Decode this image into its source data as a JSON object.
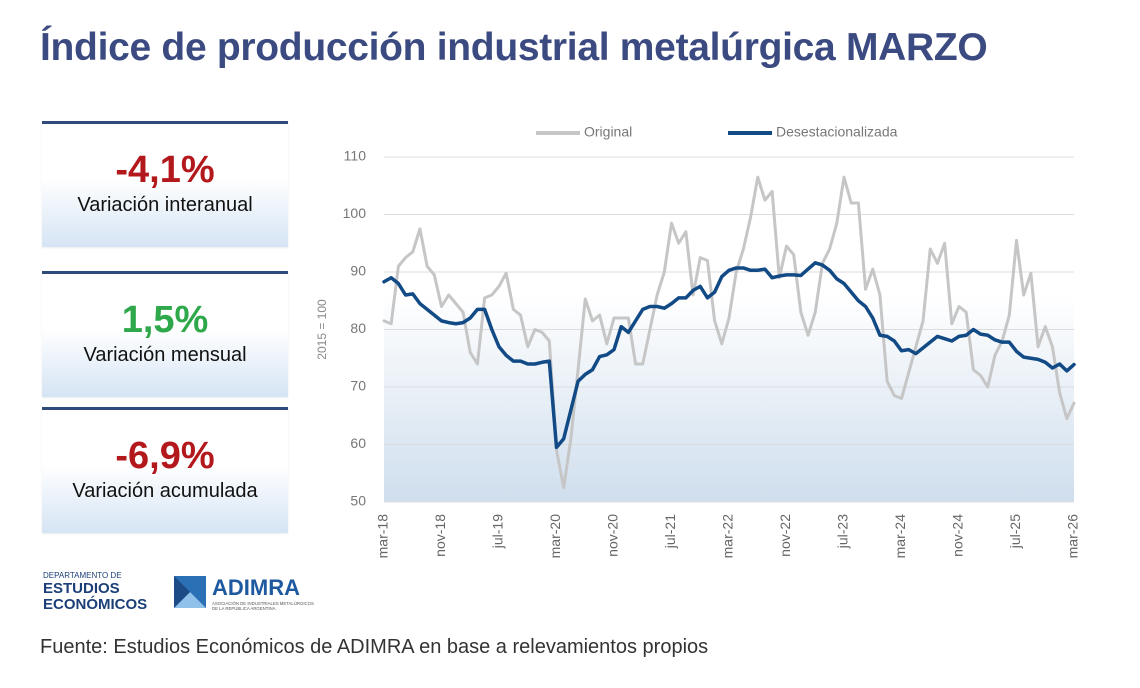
{
  "title": "Índice de producción industrial metalúrgica MARZO",
  "cards": [
    {
      "value": "-4,1%",
      "label": "Variación interanual",
      "color": "#b3191c"
    },
    {
      "value": "1,5%",
      "label": "Variación mensual",
      "color": "#2ea84a"
    },
    {
      "value": "-6,9%",
      "label": "Variación acumulada",
      "color": "#b3191c"
    }
  ],
  "logos": {
    "department": [
      "DEPARTAMENTO DE",
      "ESTUDIOS",
      "ECONÓMICOS"
    ],
    "brand": "ADIMRA",
    "brand_tagline": [
      "ASOCIACIÓN DE INDUSTRIALES METALÚRGICOS",
      "DE LA REPÚBLICA ARGENTINA"
    ]
  },
  "source": "Fuente: Estudios Económicos de ADIMRA en base a relevamientos propios",
  "chart_data": {
    "type": "line",
    "y_label": "2015 = 100",
    "categories": [
      "mar-18",
      null,
      null,
      null,
      null,
      null,
      null,
      null,
      "nov-18",
      null,
      null,
      null,
      null,
      null,
      null,
      null,
      "jul-19",
      null,
      null,
      null,
      null,
      null,
      null,
      null,
      "mar-20",
      null,
      null,
      null,
      null,
      null,
      null,
      null,
      "nov-20",
      null,
      null,
      null,
      null,
      null,
      null,
      null,
      "jul-21",
      null,
      null,
      null,
      null,
      null,
      null,
      null,
      "mar-22",
      null,
      null,
      null,
      null,
      null,
      null,
      null,
      "nov-22",
      null,
      null,
      null,
      null,
      null,
      null,
      null,
      "jul-23",
      null,
      null,
      null,
      null,
      null,
      null,
      null,
      "mar-24",
      null,
      null,
      null,
      null,
      null,
      null,
      null,
      "nov-24",
      null,
      null,
      null,
      null,
      null,
      null,
      null,
      "jul-25",
      null,
      null,
      null,
      null,
      null,
      null,
      null,
      "mar-26"
    ],
    "series": [
      {
        "name": "Original",
        "color": "#c6c6c6",
        "values": [
          81.5,
          81,
          91,
          92.5,
          93.5,
          97.5,
          91,
          89.5,
          84,
          86,
          84.5,
          83,
          76,
          74,
          85.5,
          86,
          87.5,
          89.8,
          83.5,
          82.5,
          77,
          80,
          79.5,
          78,
          59,
          52.5,
          61,
          73,
          85.3,
          81.5,
          82.5,
          77.5,
          82,
          82,
          82,
          74,
          74,
          80,
          86,
          90,
          98.5,
          95,
          97,
          86,
          92.5,
          92,
          81.5,
          77.5,
          82,
          90,
          94,
          99.5,
          106.5,
          102.5,
          104,
          89,
          94.5,
          93,
          83,
          79,
          83,
          91.5,
          94,
          98.5,
          106.5,
          102,
          102,
          87,
          90.5,
          86,
          71,
          68.5,
          68,
          72.5,
          77,
          81.5,
          94,
          91.5,
          95,
          81,
          84,
          83,
          73,
          72,
          70,
          75.5,
          78,
          82.5,
          95.5,
          86,
          89.8,
          77,
          80.5,
          77,
          69,
          64.5,
          67.2
        ]
      },
      {
        "name": "Desestacionalizada",
        "color": "#124a86",
        "values": [
          88.3,
          89,
          88,
          86,
          86.2,
          84.5,
          83.5,
          82.5,
          81.5,
          81.2,
          81,
          81.2,
          82,
          83.5,
          83.5,
          80,
          77,
          75.5,
          74.5,
          74.5,
          74,
          74,
          74.3,
          74.5,
          59.5,
          61,
          66,
          71,
          72.2,
          73,
          75.3,
          75.6,
          76.5,
          80.5,
          79.5,
          81.5,
          83.5,
          84,
          84,
          83.7,
          84.5,
          85.5,
          85.5,
          86.8,
          87.5,
          85.5,
          86.5,
          89.2,
          90.3,
          90.7,
          90.7,
          90.3,
          90.3,
          90.5,
          89,
          89.3,
          89.5,
          89.5,
          89.4,
          90.5,
          91.6,
          91.2,
          90.3,
          88.8,
          88,
          86.5,
          85,
          84,
          82,
          79,
          78.8,
          78,
          76.3,
          76.5,
          75.8,
          76.8,
          77.8,
          78.8,
          78.4,
          78,
          78.8,
          79,
          80,
          79.2,
          79,
          78.2,
          77.8,
          77.8,
          76.2,
          75.2,
          75,
          74.8,
          74.3,
          73.3,
          74,
          72.8,
          73.9
        ]
      }
    ],
    "ylim": [
      50,
      110
    ],
    "yticks": [
      50,
      60,
      70,
      80,
      90,
      100,
      110
    ],
    "grid": true
  }
}
